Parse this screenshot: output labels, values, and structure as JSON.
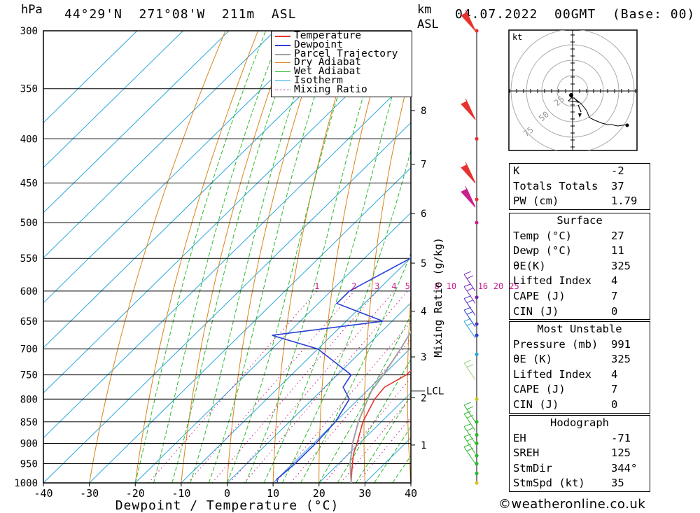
{
  "header": {
    "hpa_label": "hPa",
    "location": "44°29'N  271°08'W  211m  ASL",
    "km_label": "km",
    "asl_label": "ASL",
    "datetime": "04.07.2022  00GMT  (Base: 00)"
  },
  "chart_data": {
    "type": "skew-t",
    "title": "",
    "xlabel": "Dewpoint / Temperature (°C)",
    "ylabel": "hPa",
    "mixing_ratio_axis_label": "Mixing Ratio (g/kg)",
    "x_ticks": [
      "-40",
      "-30",
      "-20",
      "-10",
      "0",
      "10",
      "20",
      "30",
      "40"
    ],
    "pressure_levels": [
      300,
      350,
      400,
      450,
      500,
      550,
      600,
      650,
      700,
      750,
      800,
      850,
      900,
      950,
      1000
    ],
    "km_ticks": [
      {
        "label": "1",
        "p": 904
      },
      {
        "label": "2",
        "p": 797
      },
      {
        "label": "3",
        "p": 715
      },
      {
        "label": "4",
        "p": 633
      },
      {
        "label": "5",
        "p": 557
      },
      {
        "label": "6",
        "p": 488
      },
      {
        "label": "7",
        "p": 428
      },
      {
        "label": "8",
        "p": 371
      }
    ],
    "lcl": {
      "label": "LCL",
      "p": 783
    },
    "mixing_ratio_labels": [
      "1",
      "2",
      "3",
      "4",
      "5",
      "8",
      "10",
      "16",
      "20",
      "25"
    ],
    "legend": [
      "Temperature",
      "Dewpoint",
      "Parcel Trajectory",
      "Dry Adiabat",
      "Wet Adiabat",
      "Isotherm",
      "Mixing Ratio"
    ],
    "series": [
      {
        "name": "Temperature",
        "color": "#e8322f",
        "points": [
          [
            1000,
            27
          ],
          [
            975,
            25
          ],
          [
            950,
            23
          ],
          [
            925,
            21
          ],
          [
            900,
            19.5
          ],
          [
            850,
            16
          ],
          [
            800,
            13.5
          ],
          [
            775,
            13
          ],
          [
            750,
            15
          ],
          [
            700,
            15.5
          ],
          [
            650,
            13
          ],
          [
            600,
            10
          ],
          [
            550,
            5
          ],
          [
            500,
            -1
          ],
          [
            450,
            -7.5
          ],
          [
            400,
            -14.5
          ],
          [
            350,
            -23
          ],
          [
            300,
            -33
          ]
        ]
      },
      {
        "name": "Dewpoint",
        "color": "#2a40d6",
        "points": [
          [
            1000,
            11
          ],
          [
            990,
            10
          ],
          [
            950,
            10.5
          ],
          [
            900,
            10.5
          ],
          [
            850,
            10
          ],
          [
            800,
            8
          ],
          [
            775,
            4
          ],
          [
            750,
            3
          ],
          [
            700,
            -10
          ],
          [
            675,
            -23
          ],
          [
            650,
            -2
          ],
          [
            620,
            -16
          ],
          [
            600,
            -16
          ],
          [
            550,
            -10
          ],
          [
            525,
            -3
          ],
          [
            500,
            -10
          ],
          [
            450,
            -14
          ],
          [
            400,
            -20
          ],
          [
            350,
            -32
          ],
          [
            340,
            -37
          ],
          [
            300,
            -40
          ]
        ]
      },
      {
        "name": "Parcel Trajectory",
        "color": "#a0a0a0",
        "points": [
          [
            1000,
            27
          ],
          [
            950,
            22.5
          ],
          [
            900,
            18.5
          ],
          [
            850,
            15
          ],
          [
            800,
            12
          ],
          [
            783,
            11
          ],
          [
            750,
            10
          ],
          [
            700,
            8
          ],
          [
            650,
            5.5
          ],
          [
            600,
            2
          ],
          [
            550,
            -2.5
          ],
          [
            500,
            -8
          ],
          [
            450,
            -14
          ],
          [
            400,
            -21
          ],
          [
            350,
            -29.5
          ],
          [
            300,
            -39
          ]
        ]
      }
    ]
  },
  "hodograph": {
    "unit": "kt",
    "ring_labels": [
      "25",
      "50",
      "75"
    ]
  },
  "indices": [
    {
      "k": "K",
      "v": "-2"
    },
    {
      "k": "Totals Totals",
      "v": "37"
    },
    {
      "k": "PW (cm)",
      "v": "1.79"
    }
  ],
  "surface": {
    "title": "Surface",
    "rows": [
      {
        "k": "Temp (°C)",
        "v": "27"
      },
      {
        "k": "Dewp (°C)",
        "v": "11"
      },
      {
        "k": "θE(K)",
        "v": "325"
      },
      {
        "k": "Lifted Index",
        "v": "4"
      },
      {
        "k": "CAPE (J)",
        "v": "7"
      },
      {
        "k": "CIN (J)",
        "v": "0"
      }
    ]
  },
  "most_unstable": {
    "title": "Most Unstable",
    "rows": [
      {
        "k": "Pressure (mb)",
        "v": "991"
      },
      {
        "k": "θE (K)",
        "v": "325"
      },
      {
        "k": "Lifted Index",
        "v": "4"
      },
      {
        "k": "CAPE (J)",
        "v": "7"
      },
      {
        "k": "CIN (J)",
        "v": "0"
      }
    ]
  },
  "hodo_stats": {
    "title": "Hodograph",
    "rows": [
      {
        "k": "EH",
        "v": "-71"
      },
      {
        "k": "SREH",
        "v": "125"
      },
      {
        "k": "StmDir",
        "v": "344°"
      },
      {
        "k": "StmSpd (kt)",
        "v": "35"
      }
    ]
  },
  "credit": "©weatheronline.co.uk",
  "colors": {
    "temperature": "#e8322f",
    "dewpoint": "#2a40d6",
    "parcel": "#a0a0a0",
    "dry": "#d9841a",
    "wet": "#2db82d",
    "isotherm": "#2aa6dc",
    "mixing": "#c8208c"
  }
}
